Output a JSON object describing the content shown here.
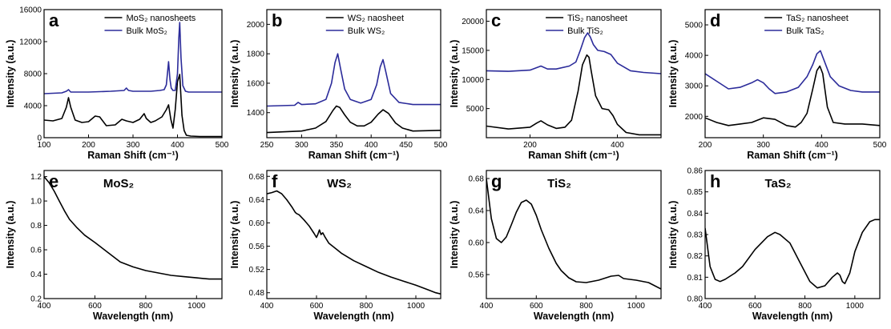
{
  "chart_data": [
    {
      "type": "line",
      "panel_label": "a",
      "xlabel": "Raman Shift (cm⁻¹)",
      "ylabel": "Intensity (a.u.)",
      "xlim": [
        100,
        500
      ],
      "ylim": [
        0,
        16000
      ],
      "xticks": [
        100,
        200,
        300,
        400,
        500
      ],
      "yticks": [
        0,
        4000,
        8000,
        12000,
        16000
      ],
      "legend": "top-right",
      "series": [
        {
          "name": "MoS₂ nanosheets",
          "color": "#000000",
          "x": [
            100,
            120,
            140,
            150,
            155,
            160,
            170,
            185,
            200,
            215,
            225,
            240,
            260,
            275,
            285,
            300,
            315,
            325,
            330,
            340,
            350,
            365,
            375,
            380,
            385,
            390,
            395,
            400,
            405,
            410,
            415,
            420,
            430,
            450,
            470,
            500
          ],
          "y": [
            2200,
            2100,
            2400,
            3800,
            5000,
            3800,
            2200,
            1900,
            2000,
            2700,
            2600,
            1500,
            1600,
            2300,
            2100,
            1900,
            2300,
            3000,
            2400,
            1900,
            2100,
            2600,
            3500,
            4100,
            2300,
            1200,
            3500,
            7000,
            7900,
            2800,
            900,
            300,
            200,
            150,
            150,
            150
          ]
        },
        {
          "name": "Bulk MoS₂",
          "color": "#2b2b9a",
          "x": [
            100,
            140,
            150,
            155,
            160,
            200,
            250,
            280,
            285,
            290,
            300,
            340,
            360,
            370,
            375,
            380,
            383,
            386,
            390,
            395,
            400,
            403,
            405,
            408,
            412,
            418,
            425,
            450,
            500
          ],
          "y": [
            5500,
            5600,
            5800,
            6000,
            5700,
            5700,
            5800,
            5900,
            6200,
            5900,
            5800,
            5800,
            5900,
            6000,
            6600,
            9500,
            7300,
            6200,
            5900,
            5900,
            8000,
            12500,
            14400,
            10000,
            6500,
            5800,
            5700,
            5700,
            5700
          ]
        }
      ]
    },
    {
      "type": "line",
      "panel_label": "b",
      "xlabel": "Raman Shift (cm⁻¹)",
      "ylabel": "Intensity (a.u.)",
      "xlim": [
        250,
        500
      ],
      "ylim": [
        1230,
        2100
      ],
      "xticks": [
        250,
        300,
        350,
        400,
        450,
        500
      ],
      "yticks": [
        1400,
        1600,
        1800,
        2000
      ],
      "legend": "top-right",
      "series": [
        {
          "name": "WS₂ naosheet",
          "color": "#000000",
          "x": [
            250,
            300,
            320,
            335,
            345,
            350,
            355,
            362,
            370,
            380,
            390,
            400,
            410,
            417,
            425,
            435,
            445,
            460,
            500
          ],
          "y": [
            1265,
            1275,
            1295,
            1340,
            1415,
            1445,
            1435,
            1385,
            1335,
            1310,
            1310,
            1335,
            1390,
            1420,
            1395,
            1330,
            1295,
            1275,
            1280
          ]
        },
        {
          "name": "Bulk WS₂",
          "color": "#2b2b9a",
          "x": [
            250,
            290,
            295,
            300,
            320,
            335,
            343,
            348,
            352,
            356,
            362,
            370,
            385,
            400,
            408,
            413,
            417,
            421,
            428,
            440,
            460,
            500
          ],
          "y": [
            1445,
            1450,
            1470,
            1455,
            1460,
            1490,
            1600,
            1740,
            1800,
            1700,
            1560,
            1490,
            1465,
            1490,
            1590,
            1710,
            1760,
            1680,
            1530,
            1470,
            1455,
            1455
          ]
        }
      ]
    },
    {
      "type": "line",
      "panel_label": "c",
      "xlabel": "Raman Shift (cm⁻¹)",
      "ylabel": "Intensity (a.u.)",
      "xlim": [
        100,
        500
      ],
      "ylim": [
        0,
        22000
      ],
      "xticks": [
        200,
        400
      ],
      "yticks": [
        5000,
        10000,
        15000,
        20000
      ],
      "legend": "top-right",
      "series": [
        {
          "name": "TiS₂ nanosheet",
          "color": "#000000",
          "x": [
            100,
            150,
            200,
            215,
            225,
            240,
            260,
            280,
            295,
            310,
            320,
            330,
            335,
            340,
            350,
            365,
            380,
            390,
            400,
            420,
            450,
            500
          ],
          "y": [
            2000,
            1500,
            1800,
            2500,
            2900,
            2200,
            1600,
            1800,
            3000,
            8000,
            12500,
            14200,
            13800,
            11500,
            7200,
            5000,
            4800,
            3800,
            2300,
            900,
            500,
            500
          ]
        },
        {
          "name": "Bulk TiS₂",
          "color": "#2b2b9a",
          "x": [
            100,
            150,
            200,
            225,
            240,
            260,
            290,
            305,
            315,
            325,
            332,
            338,
            345,
            355,
            370,
            385,
            400,
            430,
            460,
            500
          ],
          "y": [
            11500,
            11400,
            11600,
            12300,
            11800,
            11800,
            12300,
            13000,
            15000,
            17200,
            18000,
            17300,
            16000,
            15000,
            14800,
            14300,
            12800,
            11500,
            11200,
            11000
          ]
        }
      ]
    },
    {
      "type": "line",
      "panel_label": "d",
      "xlabel": "Raman Shift (cm⁻¹)",
      "ylabel": "Intensity (a.u.)",
      "xlim": [
        200,
        500
      ],
      "ylim": [
        1300,
        5500
      ],
      "xticks": [
        200,
        300,
        400,
        500
      ],
      "yticks": [
        2000,
        3000,
        4000,
        5000
      ],
      "legend": "top-right",
      "series": [
        {
          "name": "TaS₂ nanosheet",
          "color": "#000000",
          "x": [
            200,
            220,
            240,
            260,
            280,
            300,
            320,
            340,
            355,
            365,
            375,
            385,
            392,
            397,
            402,
            410,
            420,
            440,
            470,
            500
          ],
          "y": [
            1950,
            1800,
            1700,
            1750,
            1800,
            1950,
            1900,
            1700,
            1650,
            1800,
            2100,
            2900,
            3500,
            3650,
            3400,
            2300,
            1800,
            1750,
            1750,
            1700
          ]
        },
        {
          "name": "Bulk TaS₂",
          "color": "#2b2b9a",
          "x": [
            200,
            220,
            240,
            260,
            280,
            290,
            300,
            310,
            320,
            340,
            360,
            375,
            385,
            392,
            398,
            405,
            415,
            430,
            450,
            470,
            500
          ],
          "y": [
            3400,
            3150,
            2900,
            2950,
            3100,
            3200,
            3100,
            2900,
            2750,
            2800,
            2950,
            3300,
            3700,
            4050,
            4150,
            3800,
            3300,
            3000,
            2850,
            2800,
            2800
          ]
        }
      ]
    },
    {
      "type": "line",
      "panel_label": "e",
      "title": "MoS₂",
      "xlabel": "Wavelength (nm)",
      "ylabel": "Intensity (a.u.)",
      "xlim": [
        400,
        1100
      ],
      "ylim": [
        0.2,
        1.25
      ],
      "xticks": [
        400,
        600,
        800,
        1000
      ],
      "yticks": [
        0.2,
        0.4,
        0.6,
        0.8,
        1.0,
        1.2
      ],
      "series": [
        {
          "color": "#000000",
          "x": [
            400,
            420,
            440,
            460,
            480,
            500,
            530,
            560,
            600,
            650,
            700,
            750,
            800,
            850,
            900,
            950,
            1000,
            1050,
            1100
          ],
          "y": [
            1.2,
            1.15,
            1.08,
            1.0,
            0.92,
            0.85,
            0.78,
            0.72,
            0.66,
            0.58,
            0.5,
            0.46,
            0.43,
            0.41,
            0.39,
            0.38,
            0.37,
            0.36,
            0.36
          ]
        }
      ]
    },
    {
      "type": "line",
      "panel_label": "f",
      "title": "WS₂",
      "xlabel": "Wavelength (nm)",
      "ylabel": "Intensity (a.u.)",
      "xlim": [
        400,
        1100
      ],
      "ylim": [
        0.47,
        0.69
      ],
      "xticks": [
        400,
        600,
        800,
        1000
      ],
      "yticks": [
        0.48,
        0.52,
        0.56,
        0.6,
        0.64,
        0.68
      ],
      "series": [
        {
          "color": "#000000",
          "x": [
            400,
            420,
            440,
            460,
            480,
            500,
            515,
            520,
            530,
            550,
            570,
            590,
            600,
            605,
            612,
            618,
            625,
            635,
            650,
            680,
            700,
            750,
            800,
            850,
            900,
            950,
            1000,
            1050,
            1080,
            1100
          ],
          "y": [
            0.65,
            0.652,
            0.655,
            0.65,
            0.64,
            0.628,
            0.618,
            0.616,
            0.614,
            0.605,
            0.595,
            0.582,
            0.575,
            0.58,
            0.588,
            0.58,
            0.583,
            0.575,
            0.565,
            0.555,
            0.548,
            0.535,
            0.525,
            0.515,
            0.507,
            0.5,
            0.493,
            0.485,
            0.48,
            0.478
          ]
        }
      ]
    },
    {
      "type": "line",
      "panel_label": "g",
      "title": "TiS₂",
      "xlabel": "Wavelength (nm)",
      "ylabel": "Intensity (a.u.)",
      "xlim": [
        400,
        1100
      ],
      "ylim": [
        0.53,
        0.69
      ],
      "xticks": [
        400,
        600,
        800,
        1000
      ],
      "yticks": [
        0.56,
        0.6,
        0.64,
        0.68
      ],
      "series": [
        {
          "color": "#000000",
          "x": [
            400,
            420,
            440,
            460,
            480,
            500,
            520,
            540,
            560,
            580,
            600,
            620,
            650,
            680,
            700,
            730,
            760,
            800,
            850,
            900,
            930,
            950,
            1000,
            1050,
            1100
          ],
          "y": [
            0.68,
            0.63,
            0.605,
            0.6,
            0.607,
            0.622,
            0.638,
            0.65,
            0.653,
            0.648,
            0.634,
            0.616,
            0.593,
            0.574,
            0.565,
            0.556,
            0.551,
            0.55,
            0.553,
            0.558,
            0.559,
            0.555,
            0.553,
            0.55,
            0.542
          ]
        }
      ]
    },
    {
      "type": "line",
      "panel_label": "h",
      "title": "TaS₂",
      "xlabel": "Wavelength (nm)",
      "ylabel": "Intensity (a.u.)",
      "xlim": [
        400,
        1100
      ],
      "ylim": [
        0.8,
        0.86
      ],
      "xticks": [
        400,
        600,
        800,
        1000
      ],
      "yticks": [
        0.8,
        0.81,
        0.82,
        0.83,
        0.84,
        0.85,
        0.86
      ],
      "series": [
        {
          "color": "#000000",
          "x": [
            400,
            420,
            440,
            460,
            480,
            520,
            550,
            600,
            650,
            680,
            700,
            740,
            780,
            820,
            850,
            880,
            910,
            930,
            940,
            950,
            960,
            980,
            1000,
            1030,
            1060,
            1080,
            1100
          ],
          "y": [
            0.833,
            0.815,
            0.809,
            0.808,
            0.809,
            0.812,
            0.815,
            0.823,
            0.829,
            0.831,
            0.83,
            0.826,
            0.817,
            0.808,
            0.805,
            0.806,
            0.81,
            0.812,
            0.811,
            0.808,
            0.807,
            0.812,
            0.822,
            0.831,
            0.836,
            0.837,
            0.837
          ]
        }
      ]
    }
  ]
}
